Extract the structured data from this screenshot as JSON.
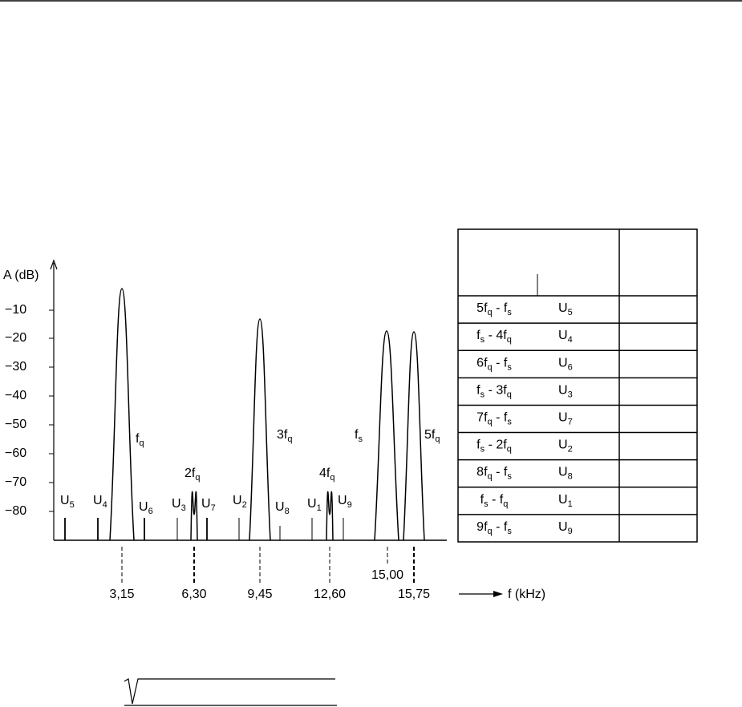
{
  "y_axis": {
    "label": "A (dB)",
    "ticks": [
      "−10",
      "−20",
      "−30",
      "−40",
      "−50",
      "−60",
      "−70",
      "−80"
    ]
  },
  "peaks": [
    {
      "label": [
        "f",
        "q"
      ]
    },
    {
      "label": [
        "2f",
        "q"
      ]
    },
    {
      "label": [
        "3f",
        "q"
      ]
    },
    {
      "label": [
        "4f",
        "q"
      ]
    },
    {
      "label": [
        "f",
        "s"
      ]
    },
    {
      "label": [
        "5f",
        "q"
      ]
    }
  ],
  "markers": [
    [
      "U",
      "5"
    ],
    [
      "U",
      "4"
    ],
    [
      "U",
      "6"
    ],
    [
      "U",
      "3"
    ],
    [
      "U",
      "7"
    ],
    [
      "U",
      "2"
    ],
    [
      "U",
      "8"
    ],
    [
      "U",
      "1"
    ],
    [
      "U",
      "9"
    ]
  ],
  "x_axis": {
    "ticks": [
      "3,15",
      "6,30",
      "9,45",
      "12,60",
      "15,00",
      "15,75"
    ],
    "label": "f (kHz)"
  },
  "table": {
    "rows": [
      [
        [
          "5f",
          "q",
          " - f",
          "s"
        ],
        [
          "U",
          "5"
        ]
      ],
      [
        [
          "f",
          "s",
          " - 4f",
          "q"
        ],
        [
          "U",
          "4"
        ]
      ],
      [
        [
          "6f",
          "q",
          " - f",
          "s"
        ],
        [
          "U",
          "6"
        ]
      ],
      [
        [
          "f",
          "s",
          " - 3f",
          "q"
        ],
        [
          "U",
          "3"
        ]
      ],
      [
        [
          "7f",
          "q",
          " - f",
          "s"
        ],
        [
          "U",
          "7"
        ]
      ],
      [
        [
          "f",
          "s",
          " - 2f",
          "q"
        ],
        [
          "U",
          "2"
        ]
      ],
      [
        [
          "8f",
          "q",
          " - f",
          "s"
        ],
        [
          "U",
          "8"
        ]
      ],
      [
        [
          "f",
          "s",
          " - f",
          "q"
        ],
        [
          "U",
          "1"
        ]
      ],
      [
        [
          "9f",
          "q",
          " - f",
          "s"
        ],
        [
          "U",
          "9"
        ]
      ]
    ]
  }
}
